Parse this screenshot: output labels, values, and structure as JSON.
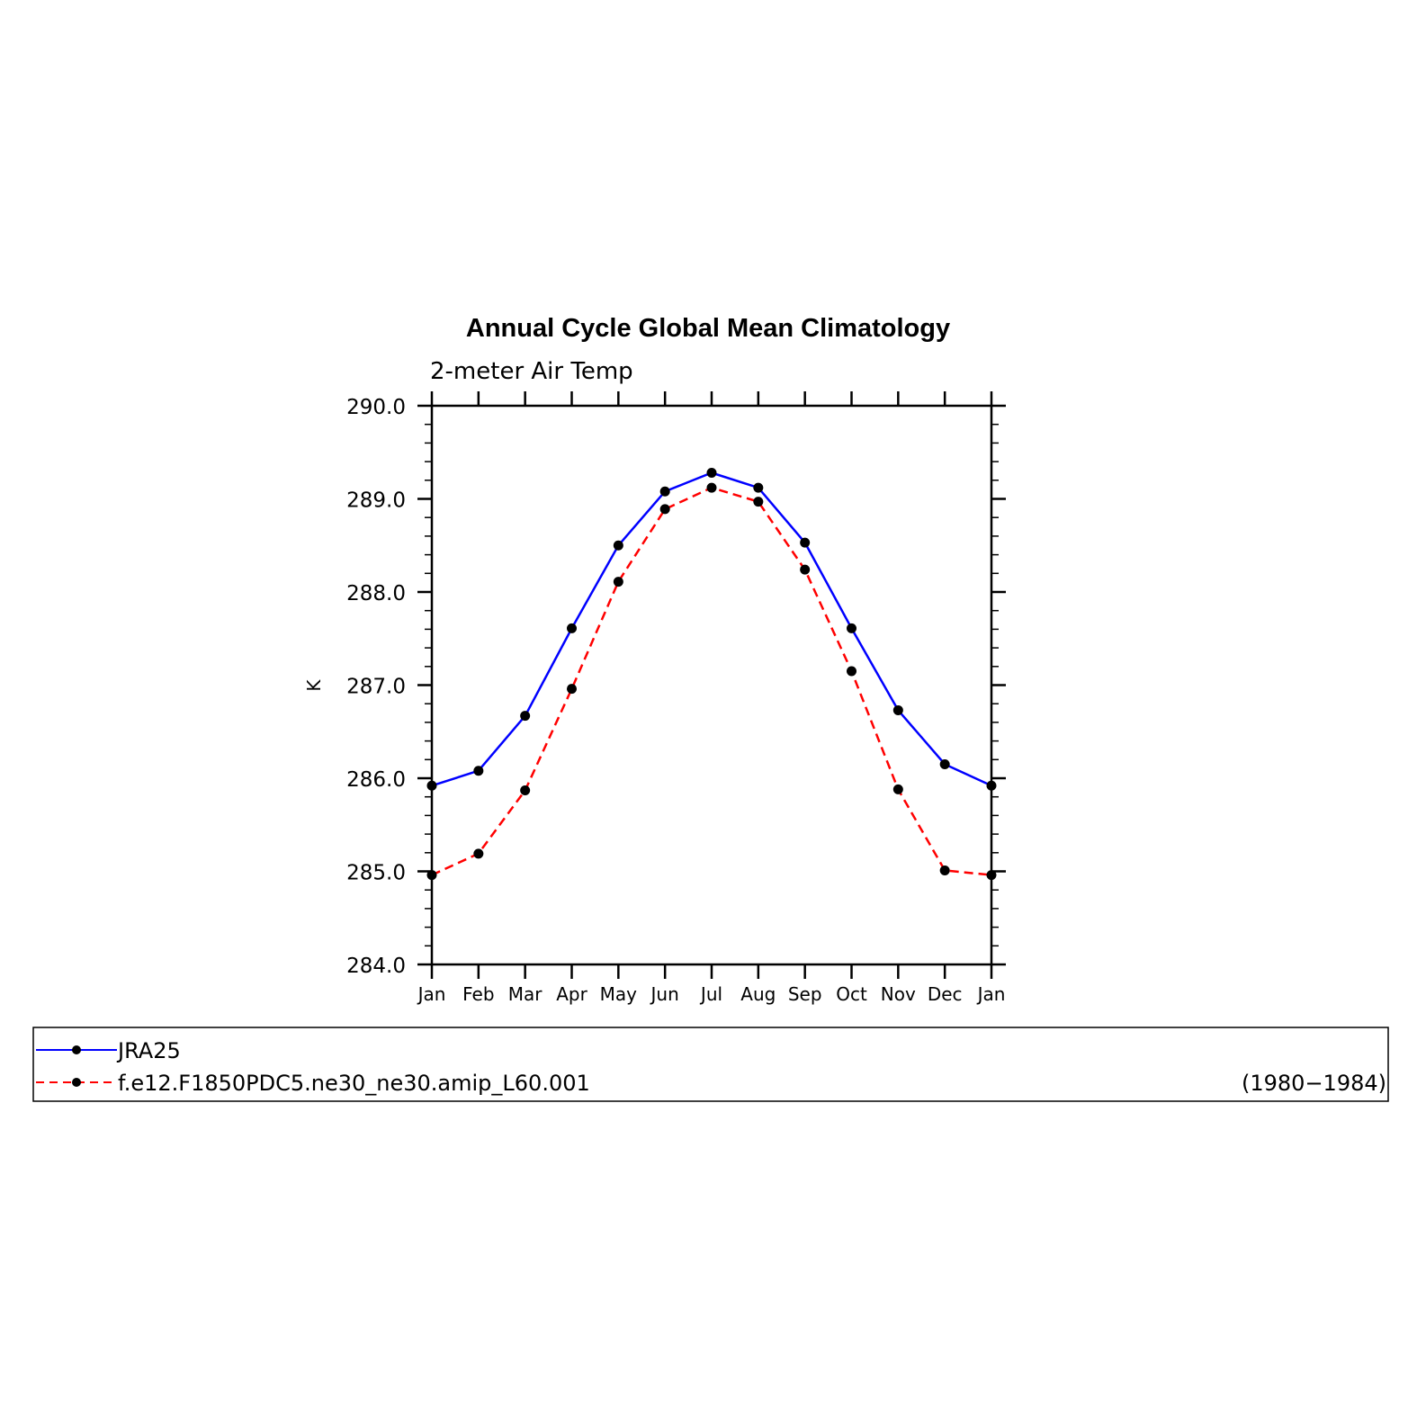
{
  "chart_data": {
    "type": "line",
    "title": "Annual Cycle Global Mean Climatology",
    "subtitle": "2-meter Air Temp",
    "ylabel": "K",
    "xlabel": "",
    "ylim": [
      284.0,
      290.0
    ],
    "y_ticks": [
      "284.0",
      "285.0",
      "286.0",
      "287.0",
      "288.0",
      "289.0",
      "290.0"
    ],
    "categories": [
      "Jan",
      "Feb",
      "Mar",
      "Apr",
      "May",
      "Jun",
      "Jul",
      "Aug",
      "Sep",
      "Oct",
      "Nov",
      "Dec",
      "Jan"
    ],
    "grid": false,
    "series": [
      {
        "name": "JRA25",
        "color": "#0000ff",
        "dash": "solid",
        "marker": "dot",
        "values": [
          285.92,
          286.08,
          286.67,
          287.61,
          288.5,
          289.08,
          289.28,
          289.12,
          288.53,
          287.61,
          286.73,
          286.15,
          285.92
        ]
      },
      {
        "name": "f.e12.F1850PDC5.ne30_ne30.amip_L60.001",
        "color": "#ff0000",
        "dash": "dashed",
        "marker": "dot",
        "values": [
          284.96,
          285.19,
          285.87,
          286.96,
          288.11,
          288.89,
          289.12,
          288.97,
          288.24,
          287.15,
          285.88,
          285.01,
          284.96
        ]
      }
    ],
    "legend": {
      "placement": "bottom",
      "period": "(1980−1984)"
    }
  }
}
